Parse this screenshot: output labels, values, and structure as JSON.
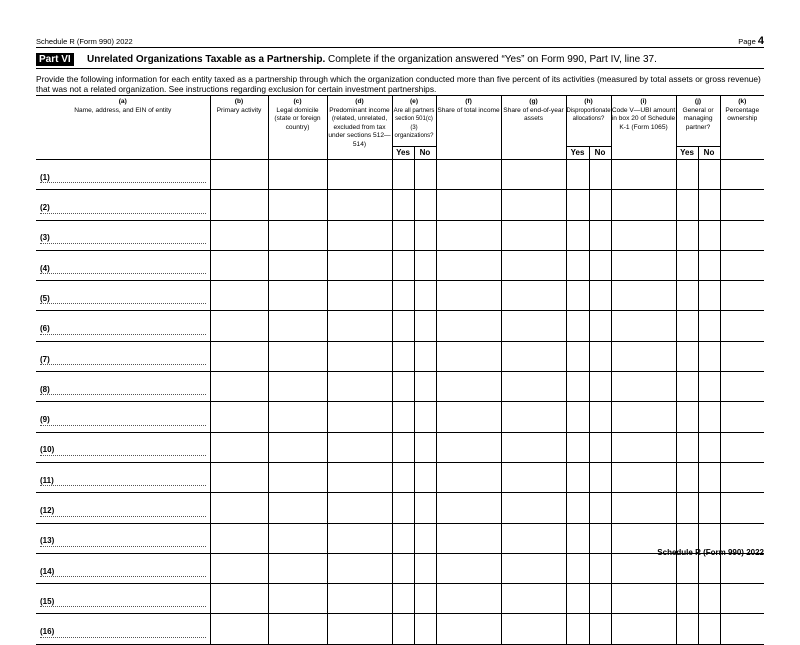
{
  "header": {
    "form_name": "Schedule R (Form 990) 2022",
    "page_label": "Page",
    "page_number": "4"
  },
  "part": {
    "label": "Part VI",
    "title": "Unrelated Organizations Taxable as a Partnership.",
    "subtitle": " Complete if the organization answered “Yes” on Form 990, Part IV, line 37."
  },
  "instructions": "Provide the following information for each entity taxed as a partnership through which the organization conducted more than five percent of its activities (measured by total assets or gross revenue) that was not a related organization. See instructions regarding exclusion for certain investment partnerships.",
  "columns": [
    {
      "letter": "(a)",
      "label": "Name, address, and EIN of entity"
    },
    {
      "letter": "(b)",
      "label": "Primary activity"
    },
    {
      "letter": "(c)",
      "label": "Legal domicile (state or foreign country)"
    },
    {
      "letter": "(d)",
      "label": "Predominant income (related, unrelated, excluded from tax under sections 512—514)"
    },
    {
      "letter": "(e)",
      "label": "Are all partners section 501(c)(3) organizations?"
    },
    {
      "letter": "(f)",
      "label": "Share of total income"
    },
    {
      "letter": "(g)",
      "label": "Share of end-of-year assets"
    },
    {
      "letter": "(h)",
      "label": "Disproportionate allocations?"
    },
    {
      "letter": "(i)",
      "label": "Code V—UBI amount in box 20 of Schedule K-1 (Form 1065)"
    },
    {
      "letter": "(j)",
      "label": "General or managing partner?"
    },
    {
      "letter": "(k)",
      "label": "Percentage ownership"
    }
  ],
  "yes_label": "Yes",
  "no_label": "No",
  "rows": [
    "(1)",
    "(2)",
    "(3)",
    "(4)",
    "(5)",
    "(6)",
    "(7)",
    "(8)",
    "(9)",
    "(10)",
    "(11)",
    "(12)",
    "(13)",
    "(14)",
    "(15)",
    "(16)"
  ],
  "footer": "Schedule R (Form 990) 2022"
}
